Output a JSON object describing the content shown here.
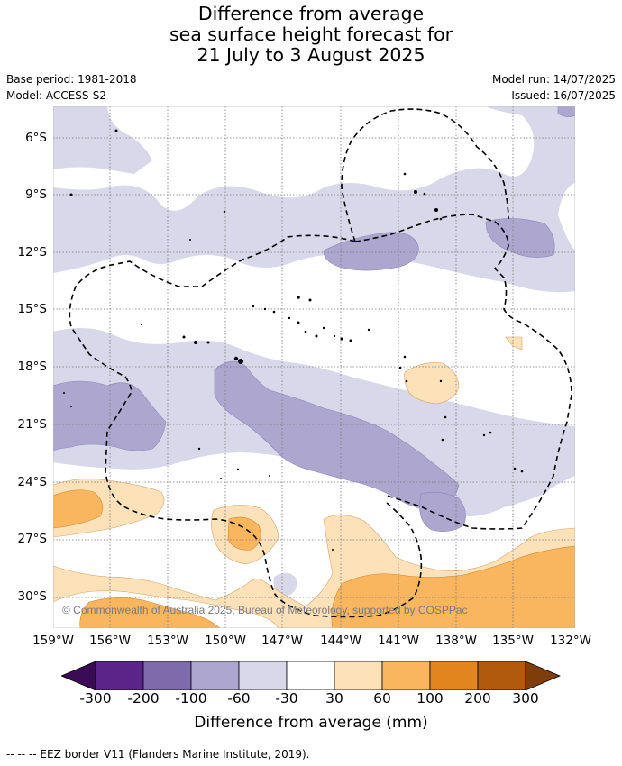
{
  "title": {
    "line1": "Difference from average",
    "line2": "sea surface height forecast for",
    "line3": "21 July to 3 August 2025"
  },
  "meta": {
    "base_period": "Base period: 1981-2018",
    "model": "Model: ACCESS-S2",
    "model_run": "Model run: 14/07/2025",
    "issued": "Issued: 16/07/2025"
  },
  "map": {
    "lat_labels": [
      "6°S",
      "9°S",
      "12°S",
      "15°S",
      "18°S",
      "21°S",
      "24°S",
      "27°S",
      "30°S"
    ],
    "lon_labels": [
      "159°W",
      "156°W",
      "153°W",
      "150°W",
      "147°W",
      "144°W",
      "141°W",
      "138°W",
      "135°W",
      "132°W"
    ],
    "copyright": "© Commonwealth of Australia 2025, Bureau of Meteorology, supported by COSPPac",
    "eez_label": "--  --  -- EEZ border V11 (Flanders Marine Institute, 2019)."
  },
  "colorbar": {
    "title": "Difference from average (mm)",
    "ticks": [
      "-300",
      "-200",
      "-100",
      "-60",
      "-30",
      "30",
      "60",
      "100",
      "200",
      "300"
    ],
    "colors": {
      "lt_-300": "#3b0a55",
      "-300_-200": "#5a2489",
      "-200_-100": "#7d6bac",
      "-100_-60": "#ada7d0",
      "-60_-30": "#d8d8ea",
      "-30_30": "#ffffff",
      "30_60": "#fde1b8",
      "60_100": "#f9b65f",
      "100_200": "#e2851c",
      "200_300": "#b15a0d",
      "gt_300": "#7f3d0a"
    }
  }
}
